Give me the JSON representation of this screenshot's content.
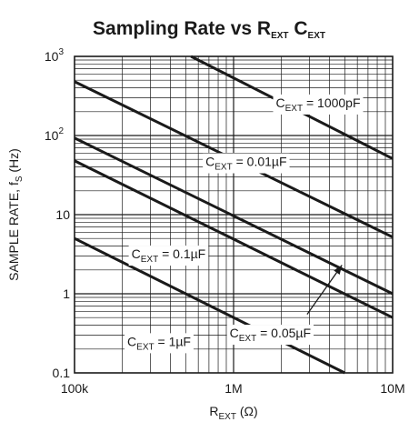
{
  "chart_data": {
    "type": "line",
    "title": {
      "main": "Sampling Rate vs R",
      "sub1": "EXT",
      "mid": " C",
      "sub2": "EXT"
    },
    "xlabel": {
      "main": "R",
      "sub": "EXT",
      "rest": " (Ω)"
    },
    "ylabel": {
      "main": "SAMPLE RATE, f",
      "sub": "S",
      "rest": " (Hz)"
    },
    "x_scale": "log",
    "y_scale": "log",
    "xlim": [
      100000,
      10000000
    ],
    "ylim": [
      0.1,
      1000
    ],
    "x_ticks": [
      {
        "value": 100000,
        "label": "100k"
      },
      {
        "value": 1000000,
        "label": "1M"
      },
      {
        "value": 10000000,
        "label": "10M"
      }
    ],
    "y_ticks": [
      {
        "value": 0.1,
        "label": "0.1"
      },
      {
        "value": 1,
        "label": "1"
      },
      {
        "value": 10,
        "label": "10"
      },
      {
        "value": 100,
        "label": "10",
        "sup": "2"
      },
      {
        "value": 1000,
        "label": "10",
        "sup": "3"
      }
    ],
    "grid": true,
    "series": [
      {
        "name": "C_EXT = 1000pF",
        "label_pre": "C",
        "label_sub": "EXT",
        "label_post": " = 1000pF",
        "x": [
          540000,
          10000000
        ],
        "y": [
          1000,
          51
        ]
      },
      {
        "name": "C_EXT = 0.01µF",
        "label_pre": "C",
        "label_sub": "EXT",
        "label_post": " = 0.01µF",
        "x": [
          100000,
          10000000
        ],
        "y": [
          480,
          5.2
        ]
      },
      {
        "name": "C_EXT = 0.05µF",
        "label_pre": "C",
        "label_sub": "EXT",
        "label_post": " = 0.05µF",
        "x": [
          100000,
          10000000
        ],
        "y": [
          93,
          1.0
        ]
      },
      {
        "name": "C_EXT = 0.1µF",
        "label_pre": "C",
        "label_sub": "EXT",
        "label_post": " = 0.1µF",
        "x": [
          100000,
          10000000
        ],
        "y": [
          48,
          0.5
        ]
      },
      {
        "name": "C_EXT = 1µF",
        "label_pre": "C",
        "label_sub": "EXT",
        "label_post": " = 1µF",
        "x": [
          100000,
          5000000
        ],
        "y": [
          5,
          0.1
        ]
      }
    ],
    "annotations": [
      {
        "series": 0,
        "x": 3400000,
        "y": 260
      },
      {
        "series": 1,
        "x": 1200000,
        "y": 47
      },
      {
        "series": 3,
        "x": 390000,
        "y": 3.2
      },
      {
        "series": 2,
        "x": 1700000,
        "y": 0.32
      },
      {
        "series": 4,
        "x": 340000,
        "y": 0.25
      }
    ],
    "arrow": {
      "from": {
        "x": 2900000,
        "y": 0.55
      },
      "to": {
        "x": 4800000,
        "y": 2.3
      }
    }
  }
}
